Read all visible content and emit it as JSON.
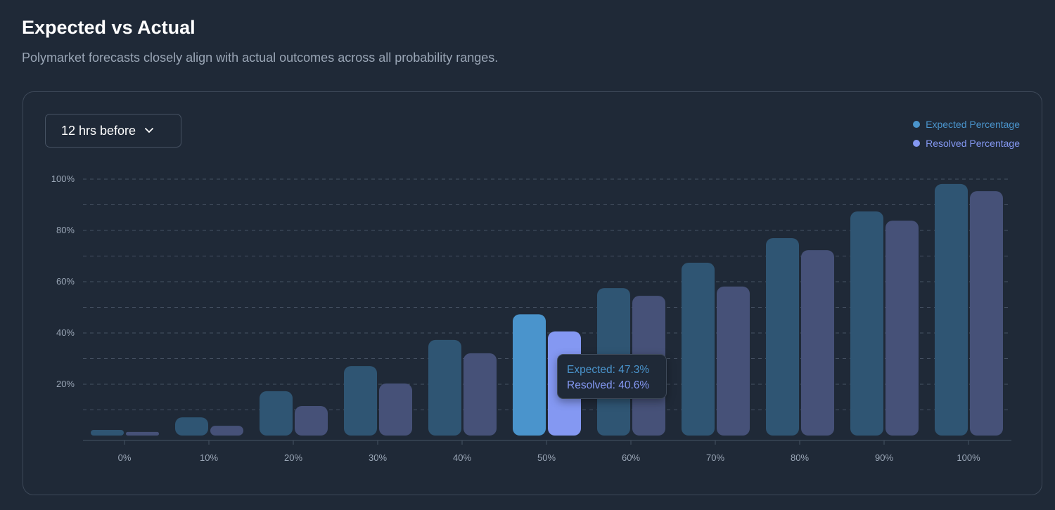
{
  "header": {
    "title": "Expected vs Actual",
    "subtitle": "Polymarket forecasts closely align with actual outcomes across all probability ranges."
  },
  "controls": {
    "timeframe": "12 hrs before",
    "dropdown_icon": "chevron-down-icon"
  },
  "colors": {
    "expected": "#4a94cc",
    "resolved": "#8498f2",
    "expected_dim": "#2f5573",
    "resolved_dim": "#465178",
    "grid": "#465263",
    "text": "#9aa6b6"
  },
  "chart_data": {
    "type": "bar",
    "title": "Expected vs Actual",
    "categories": [
      "0%",
      "10%",
      "20%",
      "30%",
      "40%",
      "50%",
      "60%",
      "70%",
      "80%",
      "90%",
      "100%"
    ],
    "series": [
      {
        "name": "Expected Percentage",
        "values": [
          2.2,
          7.1,
          17.3,
          27.1,
          37.3,
          47.3,
          57.5,
          67.4,
          77.0,
          87.4,
          98.1
        ]
      },
      {
        "name": "Resolved Percentage",
        "values": [
          1.4,
          3.8,
          11.5,
          20.3,
          32.1,
          40.6,
          54.5,
          58.1,
          72.3,
          83.8,
          95.3
        ]
      }
    ],
    "yticks": [
      "20%",
      "40%",
      "60%",
      "80%",
      "100%"
    ],
    "ylim": [
      0,
      100
    ],
    "grid": true,
    "legend": "top-right",
    "highlighted_index": 5,
    "tooltip": {
      "expected": "Expected: 47.3%",
      "resolved": "Resolved: 40.6%"
    }
  }
}
